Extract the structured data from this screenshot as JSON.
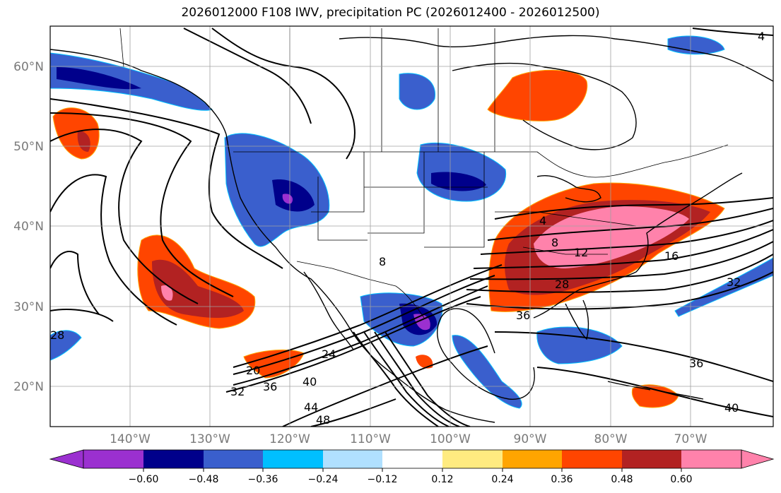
{
  "title": "2026012000 F108 IWV, precipitation PC (2026012400 - 2026012500)",
  "lat_labels": [
    "60°N",
    "50°N",
    "40°N",
    "30°N",
    "20°N"
  ],
  "lon_labels": [
    "140°W",
    "130°W",
    "120°W",
    "110°W",
    "100°W",
    "90°W",
    "80°W",
    "70°W"
  ],
  "contour_labels": [
    "4",
    "4",
    "8",
    "12",
    "16",
    "28",
    "32",
    "36",
    "40",
    "44",
    "48",
    "24",
    "20",
    "32",
    "36",
    "40",
    "28",
    "36",
    "8"
  ],
  "colorbar": {
    "colors": [
      "#9b30d0",
      "#00008b",
      "#3a5fcd",
      "#00bfff",
      "#b0e0ff",
      "#ffffff",
      "#ffeb80",
      "#ffa500",
      "#ff4500",
      "#b22222",
      "#ff82ab",
      "#ff82ab"
    ],
    "ticks": [
      "−0.60",
      "−0.48",
      "−0.36",
      "−0.24",
      "−0.12",
      "0.12",
      "0.24",
      "0.36",
      "0.48",
      "0.60"
    ]
  }
}
